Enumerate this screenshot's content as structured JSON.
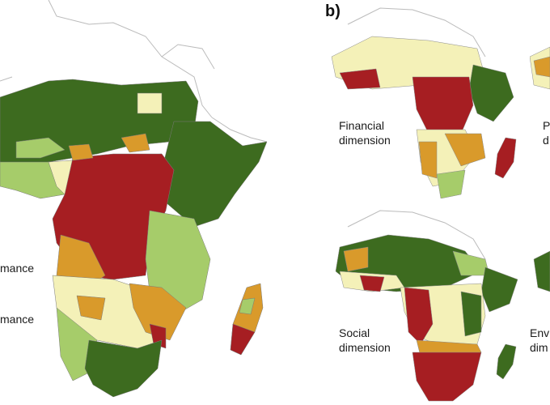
{
  "panel_letter": "b)",
  "left_map": {
    "partial_labels": [
      "mance",
      "mance"
    ]
  },
  "maps": {
    "financial": {
      "line1": "Financial",
      "line2": "dimension"
    },
    "partial_top": {
      "line1": "P",
      "line2": "d"
    },
    "social": {
      "line1": "Social",
      "line2": "dimension"
    },
    "env": {
      "line1": "Envi",
      "line2": "dim"
    }
  },
  "palette": {
    "dark_green": "#3d6b1f",
    "light_green": "#a6cc6a",
    "pale_yellow": "#f4f1b8",
    "orange": "#d99a2b",
    "dark_red": "#a61e22",
    "outline": "#8a8a8a",
    "sea_outline": "#cccccc"
  }
}
